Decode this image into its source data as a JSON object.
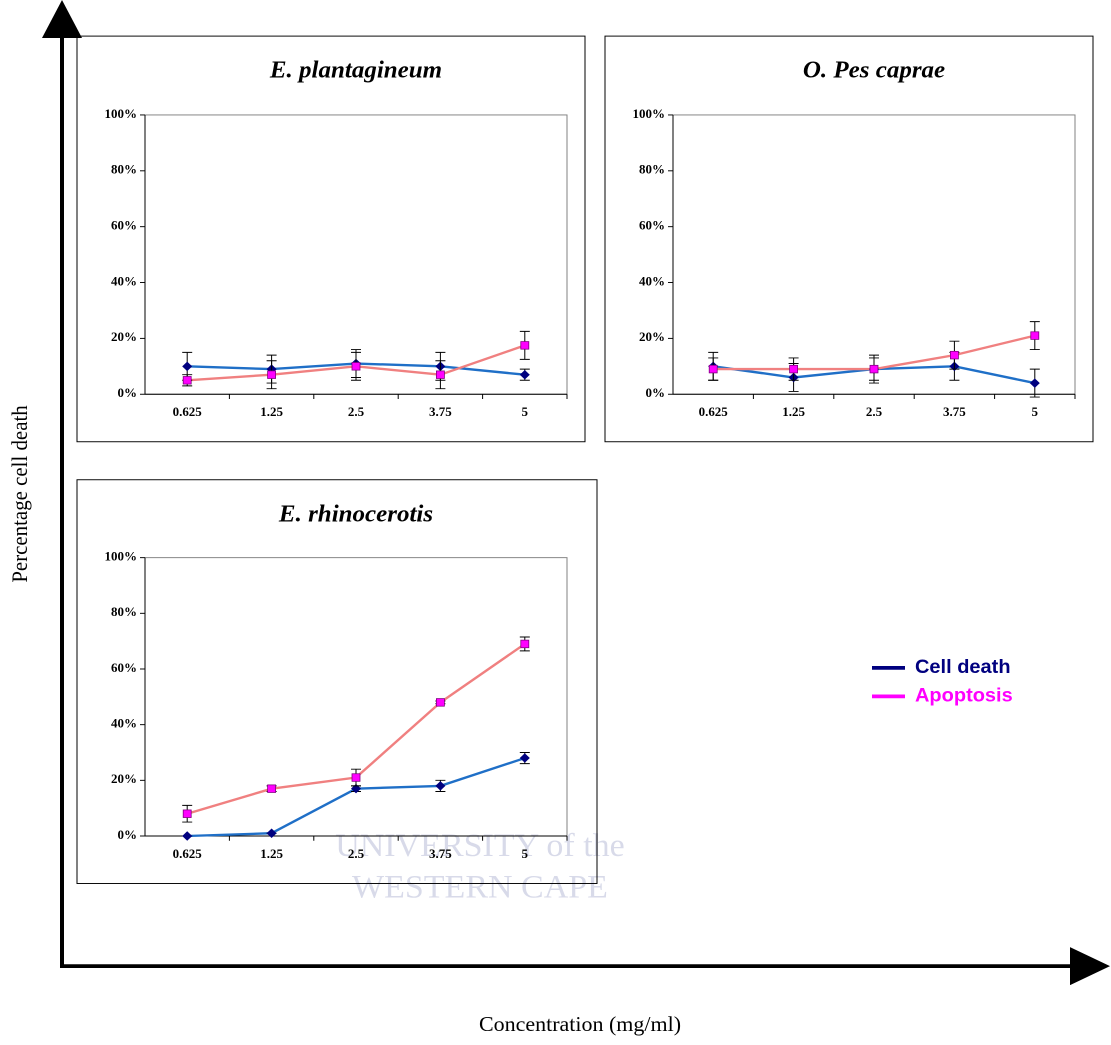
{
  "y_axis_label": "Percentage cell death",
  "x_axis_label": "Concentration (mg/ml)",
  "watermark": [
    "UNIVERSITY of the",
    "WESTERN CAPE"
  ],
  "chart_data": [
    {
      "type": "line",
      "title": "E. plantagineum",
      "categories": [
        "0.625",
        "1.25",
        "2.5",
        "3.75",
        "5"
      ],
      "ylim": [
        0,
        100
      ],
      "yticks": [
        {
          "value": 0,
          "label": "0%"
        },
        {
          "value": 20,
          "label": "20%"
        },
        {
          "value": 40,
          "label": "40%"
        },
        {
          "value": 60,
          "label": "60%"
        },
        {
          "value": 80,
          "label": "80%"
        },
        {
          "value": 100,
          "label": "100%"
        }
      ],
      "series": [
        {
          "name": "Cell death",
          "color": "#1f6fc7",
          "marker_color": "#00007f",
          "marker": "diamond",
          "values": [
            10,
            9,
            11,
            10,
            7
          ],
          "errors": [
            5,
            5,
            5,
            5,
            2
          ]
        },
        {
          "name": "Apoptosis",
          "color": "#f08080",
          "marker_color": "#ff00ff",
          "marker": "square",
          "values": [
            5,
            7,
            10,
            7,
            17.5
          ],
          "errors": [
            2,
            5,
            5,
            5,
            5
          ]
        }
      ]
    },
    {
      "type": "line",
      "title": "O. Pes caprae",
      "categories": [
        "0.625",
        "1.25",
        "2.5",
        "3.75",
        "5"
      ],
      "ylim": [
        0,
        100
      ],
      "yticks": [
        {
          "value": 0,
          "label": "0%"
        },
        {
          "value": 20,
          "label": "20%"
        },
        {
          "value": 40,
          "label": "40%"
        },
        {
          "value": 60,
          "label": "60%"
        },
        {
          "value": 80,
          "label": "80%"
        },
        {
          "value": 100,
          "label": "100%"
        }
      ],
      "series": [
        {
          "name": "Cell death",
          "color": "#1f6fc7",
          "marker_color": "#00007f",
          "marker": "diamond",
          "values": [
            10,
            6,
            9,
            10,
            4
          ],
          "errors": [
            5,
            5,
            5,
            5,
            5
          ]
        },
        {
          "name": "Apoptosis",
          "color": "#f08080",
          "marker_color": "#ff00ff",
          "marker": "square",
          "values": [
            9,
            9,
            9,
            14,
            21
          ],
          "errors": [
            4,
            4,
            4,
            5,
            5
          ]
        }
      ]
    },
    {
      "type": "line",
      "title": "E. rhinocerotis",
      "categories": [
        "0.625",
        "1.25",
        "2.5",
        "3.75",
        "5"
      ],
      "ylim": [
        0,
        100
      ],
      "yticks": [
        {
          "value": 0,
          "label": "0%"
        },
        {
          "value": 20,
          "label": "20%"
        },
        {
          "value": 40,
          "label": "40%"
        },
        {
          "value": 60,
          "label": "60%"
        },
        {
          "value": 80,
          "label": "80%"
        },
        {
          "value": 100,
          "label": "100%"
        }
      ],
      "series": [
        {
          "name": "Cell death",
          "color": "#1f6fc7",
          "marker_color": "#00007f",
          "marker": "diamond",
          "values": [
            0,
            1,
            17,
            18,
            28
          ],
          "errors": [
            0,
            0,
            1,
            2,
            2
          ]
        },
        {
          "name": "Apoptosis",
          "color": "#f08080",
          "marker_color": "#ff00ff",
          "marker": "square",
          "values": [
            8,
            17,
            21,
            48,
            69
          ],
          "errors": [
            3,
            1,
            3,
            0.5,
            2.5
          ]
        }
      ]
    }
  ]
}
